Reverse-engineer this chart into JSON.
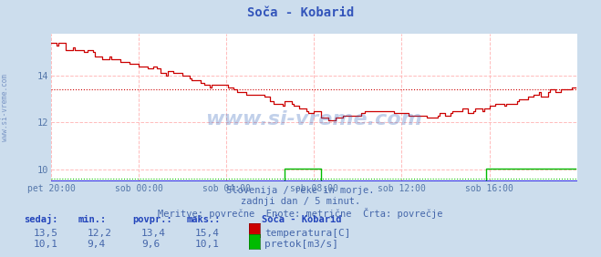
{
  "title": "Soča - Kobarid",
  "bg_color": "#ccdded",
  "plot_bg_color": "#ffffff",
  "grid_color": "#ffb0b0",
  "xlabel_color": "#5577aa",
  "title_color": "#3355bb",
  "text_color": "#4466aa",
  "xlim": [
    0,
    288
  ],
  "ylim": [
    9.5,
    15.8
  ],
  "yticks": [
    10,
    12,
    14
  ],
  "xtick_labels": [
    "pet 20:00",
    "sob 00:00",
    "sob 04:00",
    "sob 08:00",
    "sob 12:00",
    "sob 16:00"
  ],
  "xtick_positions": [
    0,
    48,
    96,
    144,
    192,
    240
  ],
  "avg_temp": 13.4,
  "avg_flow": 9.6,
  "watermark": "www.si-vreme.com",
  "subtitle1": "Slovenija / reke in morje.",
  "subtitle2": "zadnji dan / 5 minut.",
  "subtitle3": "Meritve: povrečne  Enote: metrične  Črta: povrečje",
  "legend_title": "Soča - Kobarid",
  "legend_items": [
    {
      "label": "temperatura[C]",
      "color": "#cc0000"
    },
    {
      "label": "pretok[m3/s]",
      "color": "#00bb00"
    }
  ],
  "table_headers": [
    "sedaj:",
    "min.:",
    "povpr.:",
    "maks.:"
  ],
  "table_rows": [
    {
      "sedaj": "13,5",
      "min": "12,2",
      "povpr": "13,4",
      "maks": "15,4"
    },
    {
      "sedaj": "10,1",
      "min": "9,4",
      "povpr": "9,6",
      "maks": "10,1"
    }
  ]
}
